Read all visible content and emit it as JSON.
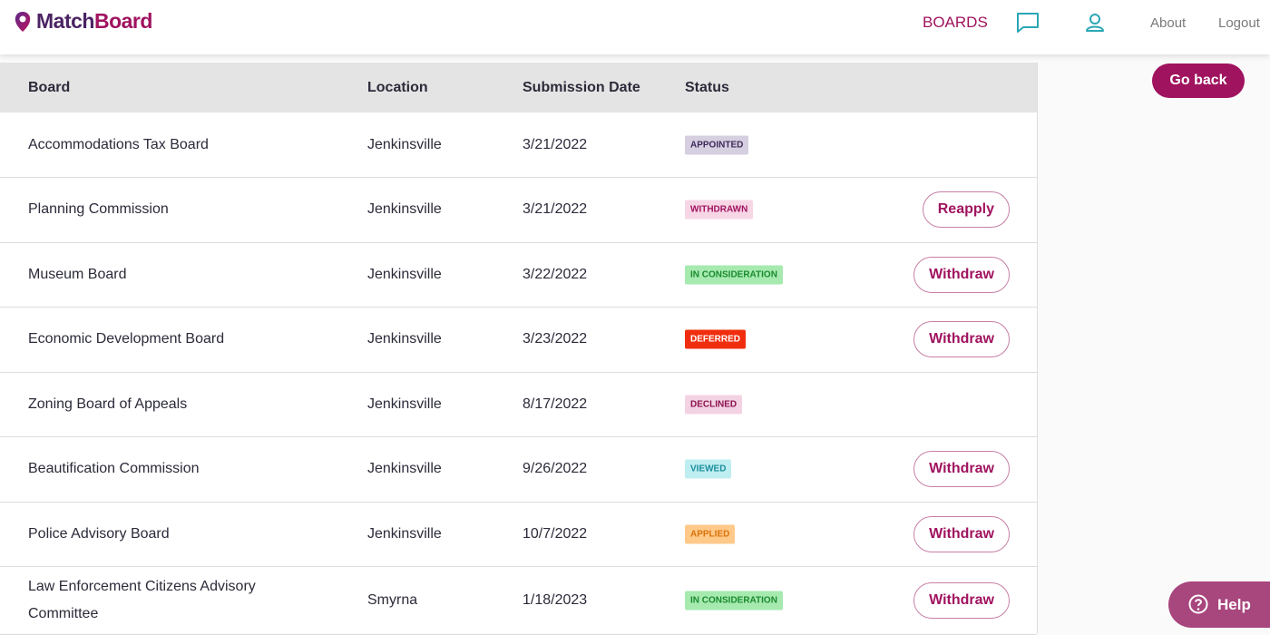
{
  "header": {
    "logo_prefix": "Match",
    "logo_suffix": "Board",
    "nav": {
      "boards": "BOARDS",
      "about": "About",
      "logout": "Logout"
    }
  },
  "table": {
    "columns": [
      "Board",
      "Location",
      "Submission Date",
      "Status"
    ],
    "rows": [
      {
        "board": "Accommodations Tax Board",
        "location": "Jenkinsville",
        "date": "3/21/2022",
        "status": "APPOINTED"
      },
      {
        "board": "Planning Commission",
        "location": "Jenkinsville",
        "date": "3/21/2022",
        "status": "WITHDRAWN",
        "action": "Reapply"
      },
      {
        "board": "Museum Board",
        "location": "Jenkinsville",
        "date": "3/22/2022",
        "status": "IN CONSIDERATION",
        "action": "Withdraw"
      },
      {
        "board": "Economic Development Board",
        "location": "Jenkinsville",
        "date": "3/23/2022",
        "status": "DEFERRED",
        "action": "Withdraw"
      },
      {
        "board": "Zoning Board of Appeals",
        "location": "Jenkinsville",
        "date": "8/17/2022",
        "status": "DECLINED"
      },
      {
        "board": "Beautification Commission",
        "location": "Jenkinsville",
        "date": "9/26/2022",
        "status": "VIEWED",
        "action": "Withdraw"
      },
      {
        "board": "Police Advisory Board",
        "location": "Jenkinsville",
        "date": "10/7/2022",
        "status": "APPLIED",
        "action": "Withdraw"
      },
      {
        "board": "Law Enforcement Citizens Advisory Committee",
        "location": "Smyrna",
        "date": "1/18/2023",
        "status": "IN CONSIDERATION",
        "action": "Withdraw"
      }
    ]
  },
  "go_back": "Go back",
  "help": "Help"
}
